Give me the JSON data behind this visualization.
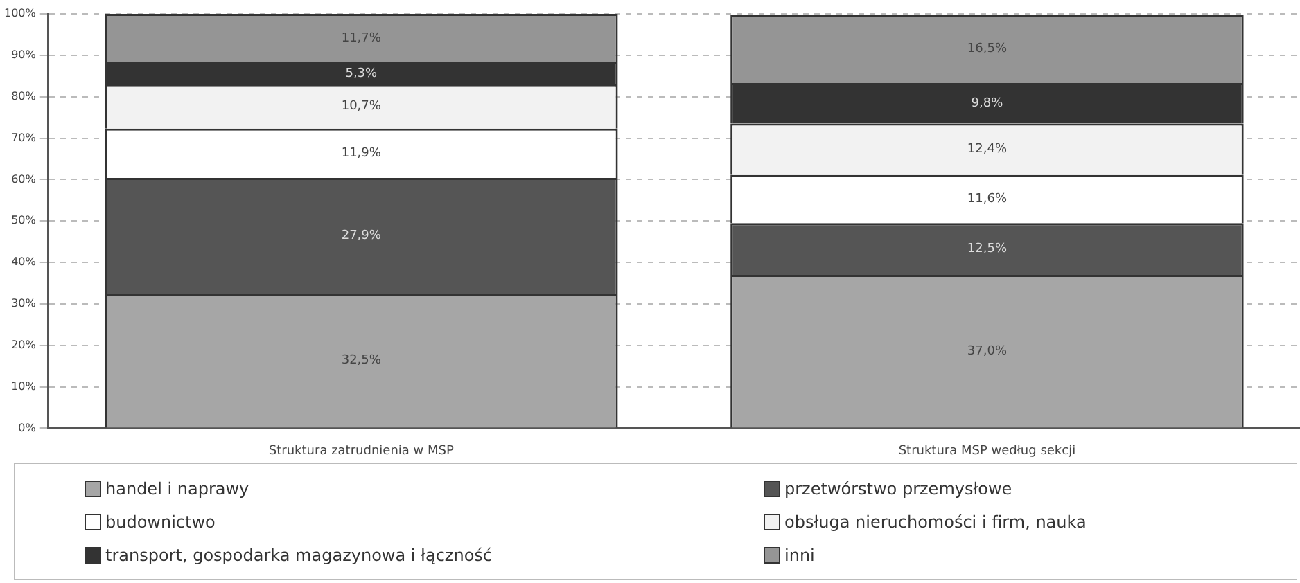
{
  "chart_data": {
    "type": "bar",
    "stacked": true,
    "categories": [
      "Struktura zatrudnienia w MSP",
      "Struktura MSP według sekcji"
    ],
    "series": [
      {
        "name": "handel i naprawy",
        "color": "#a6a6a6",
        "values": [
          32.5,
          37.0
        ],
        "value_labels": [
          "32,5%",
          "37,0%"
        ]
      },
      {
        "name": "przetwórstwo przemysłowe",
        "color": "#555555",
        "values": [
          27.9,
          12.5
        ],
        "value_labels": [
          "27,9%",
          "12,5%"
        ]
      },
      {
        "name": "budownictwo",
        "color": "#ffffff",
        "values": [
          11.9,
          11.6
        ],
        "value_labels": [
          "11,9%",
          "11,6%"
        ]
      },
      {
        "name": "obsługa nieruchomości i firm, nauka",
        "color": "#f2f2f2",
        "values": [
          10.7,
          12.4
        ],
        "value_labels": [
          "10,7%",
          "12,4%"
        ]
      },
      {
        "name": "transport, gospodarka magazynowa i łączność",
        "color": "#333333",
        "values": [
          5.3,
          9.8
        ],
        "value_labels": [
          "5,3%",
          "9,8%"
        ]
      },
      {
        "name": "inni",
        "color": "#959595",
        "values": [
          11.7,
          16.5
        ],
        "value_labels": [
          "11,7%",
          "16,5%"
        ]
      }
    ],
    "ylim": [
      0,
      100
    ],
    "yticks": [
      {
        "value": 0,
        "label": "0%"
      },
      {
        "value": 10,
        "label": "10%"
      },
      {
        "value": 20,
        "label": "20%"
      },
      {
        "value": 30,
        "label": "30%"
      },
      {
        "value": 40,
        "label": "40%"
      },
      {
        "value": 50,
        "label": "50%"
      },
      {
        "value": 60,
        "label": "60%"
      },
      {
        "value": 70,
        "label": "70%"
      },
      {
        "value": 80,
        "label": "80%"
      },
      {
        "value": 90,
        "label": "90%"
      },
      {
        "value": 100,
        "label": "100%"
      }
    ],
    "grid": "y",
    "legend": "bottom"
  }
}
